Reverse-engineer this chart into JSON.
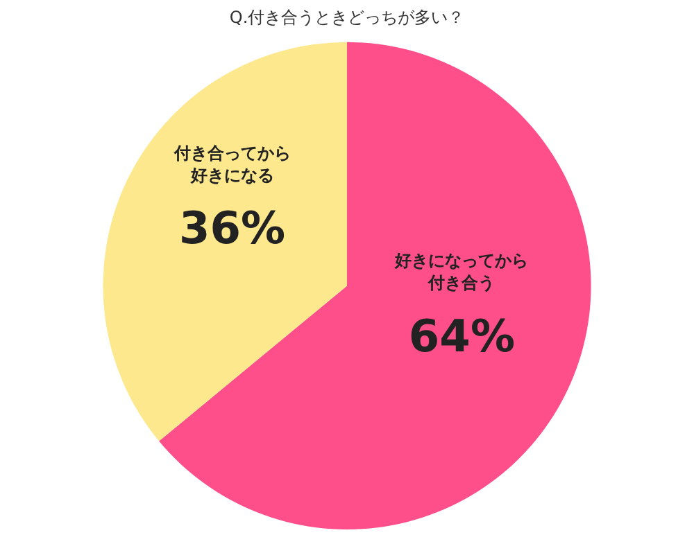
{
  "chart_data": {
    "type": "pie",
    "title": "Q.付き合うときどっちが多い？",
    "categories": [
      "好きになってから付き合う",
      "付き合ってから好きになる"
    ],
    "values": [
      64,
      36
    ],
    "colors": [
      "#ff4f8a",
      "#fde88e"
    ],
    "value_labels": [
      "64%",
      "36%"
    ],
    "legend": false
  }
}
